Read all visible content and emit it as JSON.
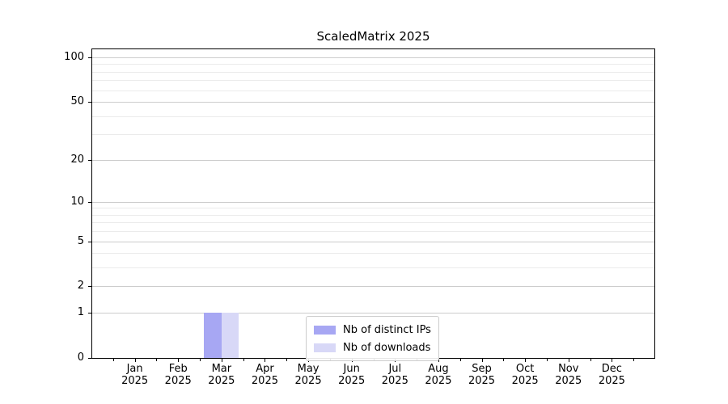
{
  "chart_data": {
    "type": "bar",
    "title": "ScaledMatrix 2025",
    "y_scale": "log10(1+x)",
    "months": [
      "Jan",
      "Feb",
      "Mar",
      "Apr",
      "May",
      "Jun",
      "Jul",
      "Aug",
      "Sep",
      "Oct",
      "Nov",
      "Dec"
    ],
    "year": "2025",
    "categories": [
      "Jan 2025",
      "Feb 2025",
      "Mar 2025",
      "Apr 2025",
      "May 2025",
      "Jun 2025",
      "Jul 2025",
      "Aug 2025",
      "Sep 2025",
      "Oct 2025",
      "Nov 2025",
      "Dec 2025"
    ],
    "series": [
      {
        "name": "Nb of distinct IPs",
        "color": "#a7a7f3",
        "values": [
          0,
          0,
          1,
          0,
          0,
          0,
          0,
          0,
          0,
          0,
          0,
          0
        ]
      },
      {
        "name": "Nb of downloads",
        "color": "#d8d8f7",
        "values": [
          0,
          0,
          1,
          0,
          0,
          0,
          0,
          0,
          0,
          0,
          0,
          0
        ]
      }
    ],
    "y_major_ticks": [
      0,
      1,
      2,
      5,
      10,
      20,
      50,
      100
    ],
    "y_minor_ticks": [
      3,
      4,
      6,
      7,
      8,
      9,
      30,
      40,
      60,
      70,
      80,
      90
    ],
    "ylim": [
      0,
      113
    ],
    "grid": "horizontal major+minor",
    "legend_position": "lower center"
  },
  "colors": {
    "grid_major": "#cccccc",
    "grid_minor": "#ebebeb",
    "spine": "#000000",
    "background": "#ffffff",
    "legend_border": "#cccccc"
  }
}
